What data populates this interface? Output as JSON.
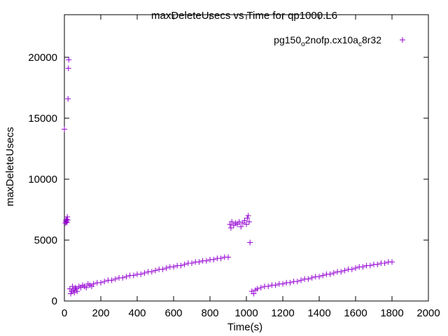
{
  "chart_data": {
    "type": "scatter",
    "title": "maxDeleteUsecs vs Time for qp1000.L6",
    "xlabel": "Time(s)",
    "ylabel": "maxDeleteUsecs",
    "xlim": [
      0,
      2000
    ],
    "ylim": [
      0,
      23500
    ],
    "x_ticks": [
      0,
      200,
      400,
      600,
      800,
      1000,
      1200,
      1400,
      1600,
      1800,
      2000
    ],
    "y_ticks": [
      0,
      5000,
      10000,
      15000,
      20000
    ],
    "grid": false,
    "legend_position": "top-right",
    "marker": "+",
    "color": "#9400d3",
    "legend": {
      "prefix": "pg150",
      "sub1": "o",
      "middle": "2nofp.cx10a",
      "sub2": "c",
      "suffix": "8r32"
    },
    "series": [
      {
        "name": "pg150_o2nofp.cx10a_c8r32",
        "points": [
          [
            0,
            14100
          ],
          [
            5,
            6400
          ],
          [
            8,
            6600
          ],
          [
            10,
            6500
          ],
          [
            12,
            6700
          ],
          [
            14,
            6450
          ],
          [
            16,
            6900
          ],
          [
            18,
            6650
          ],
          [
            20,
            16600
          ],
          [
            22,
            19100
          ],
          [
            24,
            19800
          ],
          [
            30,
            1000
          ],
          [
            35,
            600
          ],
          [
            40,
            800
          ],
          [
            45,
            1200
          ],
          [
            50,
            900
          ],
          [
            55,
            700
          ],
          [
            60,
            1100
          ],
          [
            65,
            1000
          ],
          [
            70,
            800
          ],
          [
            80,
            1200
          ],
          [
            90,
            1100
          ],
          [
            100,
            1300
          ],
          [
            110,
            1200
          ],
          [
            120,
            1100
          ],
          [
            130,
            1400
          ],
          [
            140,
            1300
          ],
          [
            150,
            1200
          ],
          [
            160,
            1400
          ],
          [
            180,
            1500
          ],
          [
            200,
            1500
          ],
          [
            220,
            1600
          ],
          [
            240,
            1700
          ],
          [
            260,
            1700
          ],
          [
            280,
            1800
          ],
          [
            300,
            1900
          ],
          [
            320,
            1900
          ],
          [
            340,
            2000
          ],
          [
            360,
            2100
          ],
          [
            380,
            2100
          ],
          [
            400,
            2200
          ],
          [
            420,
            2200
          ],
          [
            440,
            2300
          ],
          [
            460,
            2400
          ],
          [
            480,
            2400
          ],
          [
            500,
            2500
          ],
          [
            520,
            2600
          ],
          [
            540,
            2600
          ],
          [
            560,
            2700
          ],
          [
            580,
            2800
          ],
          [
            600,
            2800
          ],
          [
            620,
            2900
          ],
          [
            640,
            2900
          ],
          [
            660,
            3000
          ],
          [
            680,
            3100
          ],
          [
            700,
            3100
          ],
          [
            720,
            3200
          ],
          [
            740,
            3200
          ],
          [
            760,
            3300
          ],
          [
            780,
            3300
          ],
          [
            800,
            3400
          ],
          [
            820,
            3400
          ],
          [
            840,
            3500
          ],
          [
            860,
            3500
          ],
          [
            880,
            3600
          ],
          [
            900,
            3600
          ],
          [
            910,
            6300
          ],
          [
            915,
            6000
          ],
          [
            920,
            6500
          ],
          [
            930,
            6200
          ],
          [
            940,
            6400
          ],
          [
            950,
            6300
          ],
          [
            960,
            6500
          ],
          [
            970,
            6100
          ],
          [
            980,
            6400
          ],
          [
            990,
            6600
          ],
          [
            1000,
            6300
          ],
          [
            1005,
            6800
          ],
          [
            1010,
            7000
          ],
          [
            1015,
            6500
          ],
          [
            1020,
            4800
          ],
          [
            1030,
            800
          ],
          [
            1040,
            600
          ],
          [
            1050,
            900
          ],
          [
            1060,
            1000
          ],
          [
            1080,
            1100
          ],
          [
            1100,
            1200
          ],
          [
            1120,
            1200
          ],
          [
            1140,
            1300
          ],
          [
            1160,
            1300
          ],
          [
            1180,
            1400
          ],
          [
            1200,
            1400
          ],
          [
            1220,
            1500
          ],
          [
            1240,
            1500
          ],
          [
            1260,
            1600
          ],
          [
            1280,
            1600
          ],
          [
            1300,
            1700
          ],
          [
            1320,
            1800
          ],
          [
            1340,
            1800
          ],
          [
            1360,
            1900
          ],
          [
            1380,
            2000
          ],
          [
            1400,
            2000
          ],
          [
            1420,
            2100
          ],
          [
            1440,
            2200
          ],
          [
            1460,
            2200
          ],
          [
            1480,
            2300
          ],
          [
            1500,
            2400
          ],
          [
            1520,
            2400
          ],
          [
            1540,
            2500
          ],
          [
            1560,
            2600
          ],
          [
            1580,
            2600
          ],
          [
            1600,
            2700
          ],
          [
            1620,
            2800
          ],
          [
            1640,
            2800
          ],
          [
            1660,
            2900
          ],
          [
            1680,
            2900
          ],
          [
            1700,
            3000
          ],
          [
            1720,
            3000
          ],
          [
            1740,
            3100
          ],
          [
            1760,
            3100
          ],
          [
            1780,
            3200
          ],
          [
            1800,
            3200
          ]
        ]
      }
    ]
  }
}
